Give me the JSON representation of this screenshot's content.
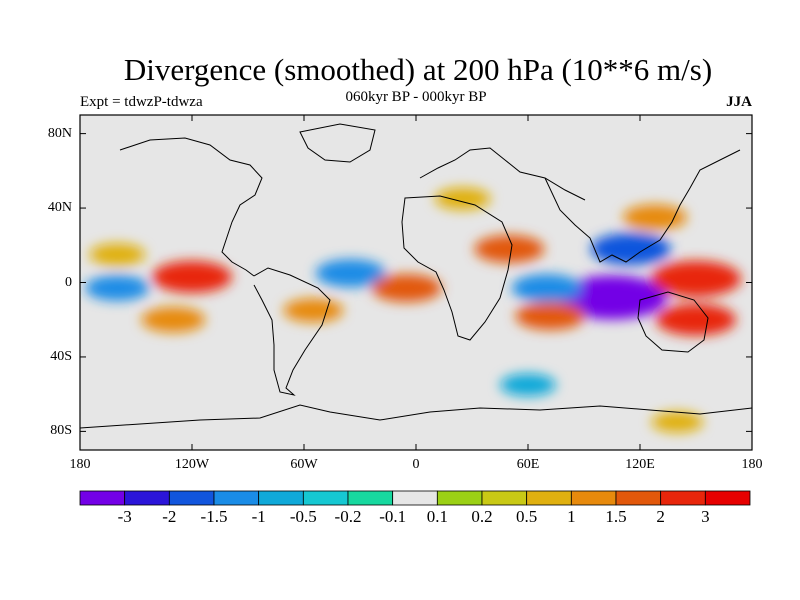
{
  "title": "Divergence (smoothed) at 200 hPa (10**6 m/s)",
  "subtitle_left": "Expt = tdwzP-tdwza",
  "subtitle_center": "060kyr BP - 000kyr BP",
  "subtitle_right": "JJA",
  "map": {
    "projection": "cylindrical-equidistant",
    "lon_range": [
      -180,
      180
    ],
    "lat_range": [
      -90,
      90
    ],
    "y_axis_labels": [
      {
        "text": "80N",
        "lat": 80
      },
      {
        "text": "40N",
        "lat": 40
      },
      {
        "text": "0",
        "lat": 0
      },
      {
        "text": "40S",
        "lat": -40
      },
      {
        "text": "80S",
        "lat": -80
      }
    ],
    "x_axis_labels": [
      {
        "text": "180",
        "lon": -180
      },
      {
        "text": "120W",
        "lon": -120
      },
      {
        "text": "60W",
        "lon": -60
      },
      {
        "text": "0",
        "lon": 0
      },
      {
        "text": "60E",
        "lon": 60
      },
      {
        "text": "120E",
        "lon": 120
      },
      {
        "text": "180",
        "lon": 180
      }
    ],
    "background_color": "#e6e6e6",
    "features": [
      {
        "name": "west-pacific-convergence",
        "lon": 105,
        "lat": -8,
        "value": -3.5
      },
      {
        "name": "indian-ocean-convergence",
        "lon": 70,
        "lat": -3,
        "value": -1.5
      },
      {
        "name": "west-pacific-divergence",
        "lon": 150,
        "lat": 2,
        "value": 2.5
      },
      {
        "name": "australia-divergence",
        "lon": 150,
        "lat": -20,
        "value": 2.0
      },
      {
        "name": "northeast-pacific-divergence",
        "lon": -120,
        "lat": 3,
        "value": 2.0
      },
      {
        "name": "atlantic-convergence",
        "lon": -35,
        "lat": 5,
        "value": -1.5
      },
      {
        "name": "africa-divergence",
        "lon": -5,
        "lat": -3,
        "value": 1.5
      },
      {
        "name": "south-indian-divergence",
        "lon": 72,
        "lat": -18,
        "value": 1.5
      },
      {
        "name": "philippine-convergence",
        "lon": 115,
        "lat": 18,
        "value": -2.0
      },
      {
        "name": "japan-divergence",
        "lon": 128,
        "lat": 35,
        "value": 1.2
      },
      {
        "name": "arabian-divergence",
        "lon": 50,
        "lat": 18,
        "value": 1.5
      },
      {
        "name": "south-america-divergence",
        "lon": -55,
        "lat": -15,
        "value": 1.0
      },
      {
        "name": "eastern-europe-divergence",
        "lon": 25,
        "lat": 45,
        "value": 0.8
      },
      {
        "name": "north-pacific-divergence",
        "lon": -160,
        "lat": 15,
        "value": 0.8
      },
      {
        "name": "tropical-pacific-convergence",
        "lon": -160,
        "lat": -3,
        "value": -1.2
      },
      {
        "name": "south-pacific-divergence",
        "lon": -130,
        "lat": -20,
        "value": 1.2
      },
      {
        "name": "southern-ocean-convergence",
        "lon": 60,
        "lat": -55,
        "value": -0.8
      },
      {
        "name": "antarctic-divergence",
        "lon": 140,
        "lat": -75,
        "value": 0.6
      }
    ]
  },
  "colorbar": {
    "levels": [
      "-3",
      "-2",
      "-1.5",
      "-1",
      "-0.5",
      "-0.2",
      "-0.1",
      "0.1",
      "0.2",
      "0.5",
      "1",
      "1.5",
      "2",
      "3"
    ],
    "colors": [
      "#7300e6",
      "#2b15d9",
      "#1155dd",
      "#1a8ce6",
      "#10a9d9",
      "#16c8d2",
      "#17d89f",
      "#e6e6e6",
      "#9bd015",
      "#c9c915",
      "#e0b010",
      "#e78a0c",
      "#e2580a",
      "#e8260b",
      "#e60000"
    ]
  }
}
